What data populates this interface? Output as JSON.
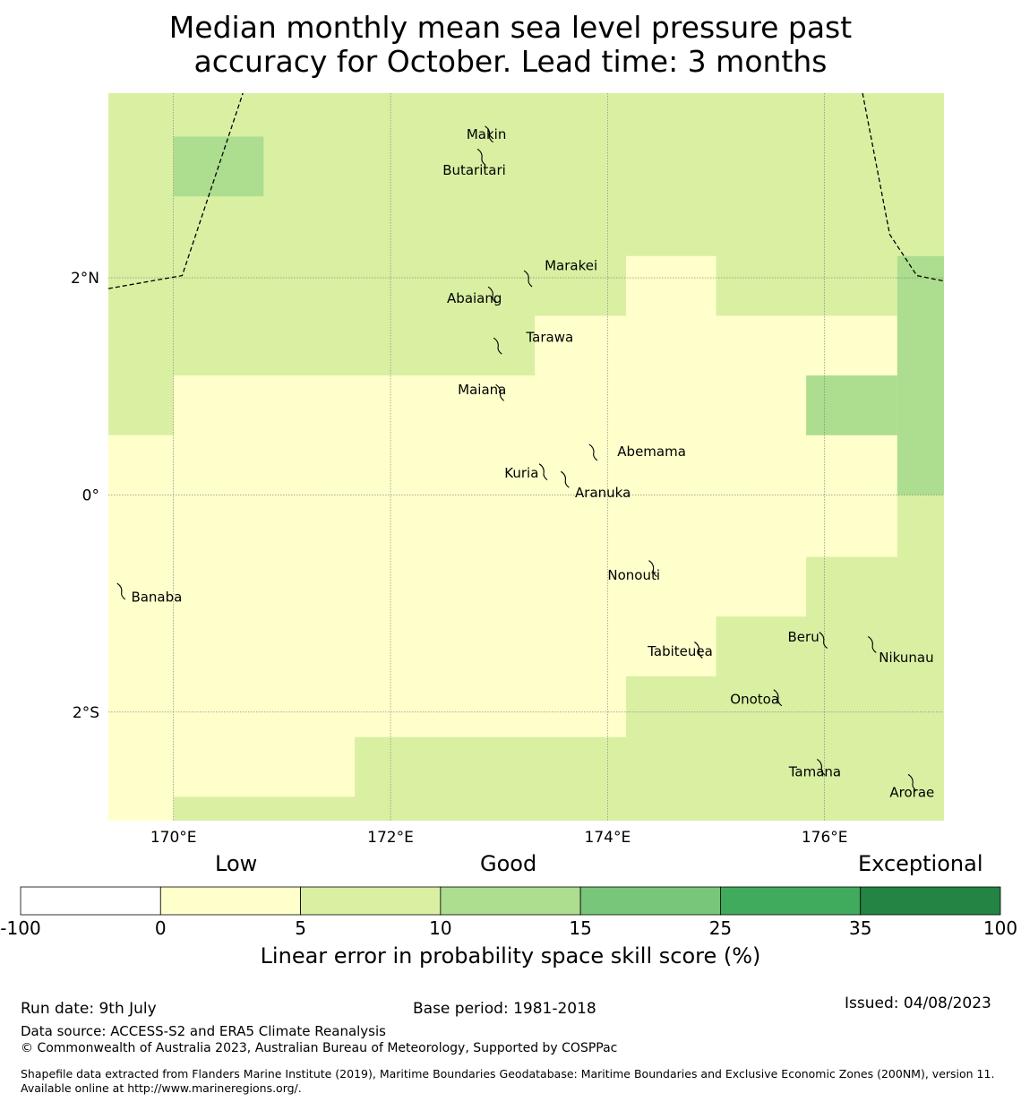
{
  "title_line1": "Median monthly mean sea level pressure past",
  "title_line2": "accuracy for October. Lead time: 3 months",
  "map": {
    "lon_range": [
      169.4,
      177.1
    ],
    "lat_range": [
      -3.0,
      3.7
    ],
    "x_ticks": [
      {
        "value": 170,
        "label": "170°E"
      },
      {
        "value": 172,
        "label": "172°E"
      },
      {
        "value": 174,
        "label": "174°E"
      },
      {
        "value": 176,
        "label": "176°E"
      }
    ],
    "y_ticks": [
      {
        "value": 2,
        "label": "2°N"
      },
      {
        "value": 0,
        "label": "0°"
      },
      {
        "value": -2,
        "label": "2°S"
      }
    ],
    "grid_lines": true,
    "colors": {
      "low": "#ffffcc",
      "good": "#d9f0a3",
      "better": "#addd8e"
    },
    "base_class": "good",
    "cells": [
      {
        "lon0": 169.4,
        "lon1": 170.0,
        "lat0": -3.0,
        "lat1": 0.55,
        "class": "low"
      },
      {
        "lon0": 170.0,
        "lon1": 171.67,
        "lat0": -2.78,
        "lat1": 1.1,
        "class": "low"
      },
      {
        "lon0": 171.67,
        "lon1": 174.17,
        "lat0": -2.23,
        "lat1": 1.1,
        "class": "low"
      },
      {
        "lon0": 173.33,
        "lon1": 174.17,
        "lat0": 1.1,
        "lat1": 1.65,
        "class": "low"
      },
      {
        "lon0": 174.17,
        "lon1": 175.0,
        "lat0": -1.67,
        "lat1": 2.2,
        "class": "low"
      },
      {
        "lon0": 175.0,
        "lon1": 175.83,
        "lat0": -1.12,
        "lat1": 1.65,
        "class": "low"
      },
      {
        "lon0": 175.83,
        "lon1": 176.67,
        "lat0": -0.57,
        "lat1": 1.65,
        "class": "low"
      },
      {
        "lon0": 175.83,
        "lon1": 176.67,
        "lat0": 0.55,
        "lat1": 1.1,
        "class": "better"
      },
      {
        "lon0": 176.67,
        "lon1": 177.1,
        "lat0": 0.0,
        "lat1": 2.2,
        "class": "better"
      },
      {
        "lon0": 170.0,
        "lon1": 170.83,
        "lat0": 2.75,
        "lat1": 3.3,
        "class": "better"
      }
    ],
    "boundary_west": [
      [
        169.4,
        1.9
      ],
      [
        170.08,
        2.02
      ],
      [
        170.64,
        3.7
      ]
    ],
    "boundary_east": [
      [
        176.35,
        3.7
      ],
      [
        176.6,
        2.4
      ],
      [
        176.85,
        2.02
      ],
      [
        177.1,
        1.97
      ]
    ],
    "islands": [
      {
        "name": "Makin",
        "lon": 172.92,
        "lat": 3.33,
        "label_lon": 172.7,
        "label_lat": 3.32
      },
      {
        "name": "Butaritari",
        "lon": 172.85,
        "lat": 3.12,
        "label_lon": 172.48,
        "label_lat": 2.99
      },
      {
        "name": "Marakei",
        "lon": 173.28,
        "lat": 2.0,
        "label_lon": 173.42,
        "label_lat": 2.11
      },
      {
        "name": "Abaiang",
        "lon": 172.95,
        "lat": 1.85,
        "label_lon": 172.52,
        "label_lat": 1.81
      },
      {
        "name": "Tarawa",
        "lon": 173.0,
        "lat": 1.38,
        "label_lon": 173.25,
        "label_lat": 1.45
      },
      {
        "name": "Maiana",
        "lon": 173.02,
        "lat": 0.95,
        "label_lon": 172.62,
        "label_lat": 0.97
      },
      {
        "name": "Abemama",
        "lon": 173.88,
        "lat": 0.4,
        "label_lon": 174.09,
        "label_lat": 0.4
      },
      {
        "name": "Kuria",
        "lon": 173.42,
        "lat": 0.22,
        "label_lon": 173.05,
        "label_lat": 0.2
      },
      {
        "name": "Aranuka",
        "lon": 173.62,
        "lat": 0.15,
        "label_lon": 173.7,
        "label_lat": 0.02
      },
      {
        "name": "Nonouti",
        "lon": 174.43,
        "lat": -0.67,
        "label_lon": 174.0,
        "label_lat": -0.74
      },
      {
        "name": "Banaba",
        "lon": 169.53,
        "lat": -0.88,
        "label_lon": 169.61,
        "label_lat": -0.94
      },
      {
        "name": "Tabiteuea",
        "lon": 174.85,
        "lat": -1.42,
        "label_lon": 174.37,
        "label_lat": -1.44
      },
      {
        "name": "Beru",
        "lon": 176.0,
        "lat": -1.33,
        "label_lon": 175.66,
        "label_lat": -1.31
      },
      {
        "name": "Nikunau",
        "lon": 176.45,
        "lat": -1.37,
        "label_lon": 176.5,
        "label_lat": -1.5
      },
      {
        "name": "Onotoa",
        "lon": 175.58,
        "lat": -1.86,
        "label_lon": 175.13,
        "label_lat": -1.88
      },
      {
        "name": "Tamana",
        "lon": 175.98,
        "lat": -2.5,
        "label_lon": 175.67,
        "label_lat": -2.55
      },
      {
        "name": "Arorae",
        "lon": 176.82,
        "lat": -2.64,
        "label_lon": 176.6,
        "label_lat": -2.74
      }
    ]
  },
  "colorbar": {
    "words": [
      {
        "text": "Low"
      },
      {
        "text": "Good"
      },
      {
        "text": "Exceptional"
      }
    ],
    "bins": [
      {
        "from": "-100",
        "color": "#ffffff"
      },
      {
        "from": "0",
        "color": "#ffffcc"
      },
      {
        "from": "5",
        "color": "#d9f0a3"
      },
      {
        "from": "10",
        "color": "#addd8e"
      },
      {
        "from": "15",
        "color": "#78c679"
      },
      {
        "from": "25",
        "color": "#41ab5d"
      },
      {
        "from": "35",
        "color": "#238443"
      }
    ],
    "ticks": [
      "-100",
      "0",
      "5",
      "10",
      "15",
      "25",
      "35",
      "100"
    ],
    "label": "Linear error in probability space skill score (%)"
  },
  "footer": {
    "run_date": "Run date: 9th July",
    "base_period": "Base period: 1981-2018",
    "issued": "Issued: 04/08/2023",
    "data_source": "Data source: ACCESS-S2 and ERA5 Climate Reanalysis",
    "copyright": "© Commonwealth of Australia 2023, Australian Bureau of Meteorology, Supported by COSPPac",
    "shapefile": "Shapefile data extracted from Flanders Marine Institute (2019), Maritime Boundaries Geodatabase: Maritime Boundaries and Exclusive Economic Zones (200NM), version 11. Available online at http://www.marineregions.org/."
  }
}
